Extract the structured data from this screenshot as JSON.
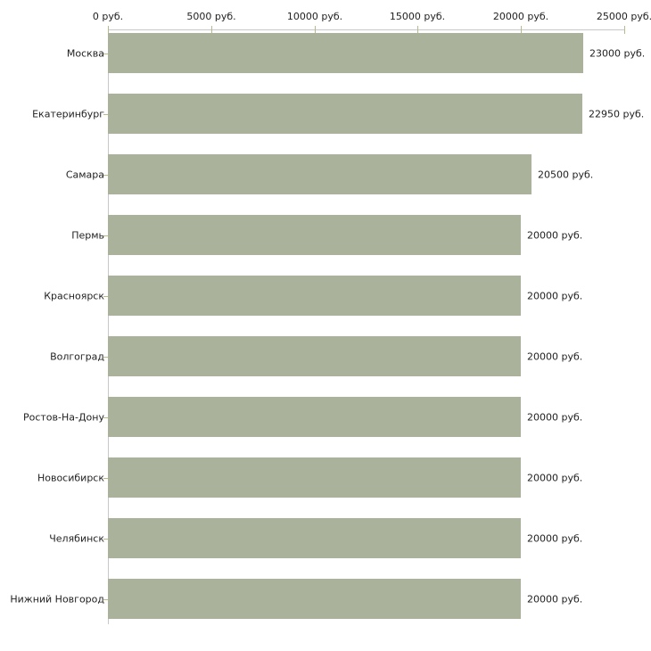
{
  "chart_data": {
    "type": "bar",
    "orientation": "horizontal",
    "title": "",
    "xlabel": "",
    "ylabel": "",
    "unit": "руб.",
    "categories": [
      "Москва",
      "Екатеринбург",
      "Самара",
      "Пермь",
      "Красноярск",
      "Волгоград",
      "Ростов-На-Дону",
      "Новосибирск",
      "Челябинск",
      "Нижний Новгород"
    ],
    "values": [
      23000,
      22950,
      20500,
      20000,
      20000,
      20000,
      20000,
      20000,
      20000,
      20000
    ],
    "value_labels": [
      "23000 руб.",
      "22950 руб.",
      "20500 руб.",
      "20000 руб.",
      "20000 руб.",
      "20000 руб.",
      "20000 руб.",
      "20000 руб.",
      "20000 руб.",
      "20000 руб."
    ],
    "xlim": [
      0,
      25000
    ],
    "x_ticks": [
      0,
      5000,
      10000,
      15000,
      20000,
      25000
    ],
    "x_tick_labels": [
      "0 руб.",
      "5000 руб.",
      "10000 руб.",
      "15000 руб.",
      "20000 руб.",
      "25000 руб."
    ],
    "x_axis_position": "top",
    "grid": false,
    "legend": false,
    "colors": {
      "bar": "#abb29b",
      "axis_line": "#c8c8c8",
      "tick": "#b8b98c",
      "text": "#222222",
      "background": "#ffffff"
    }
  }
}
